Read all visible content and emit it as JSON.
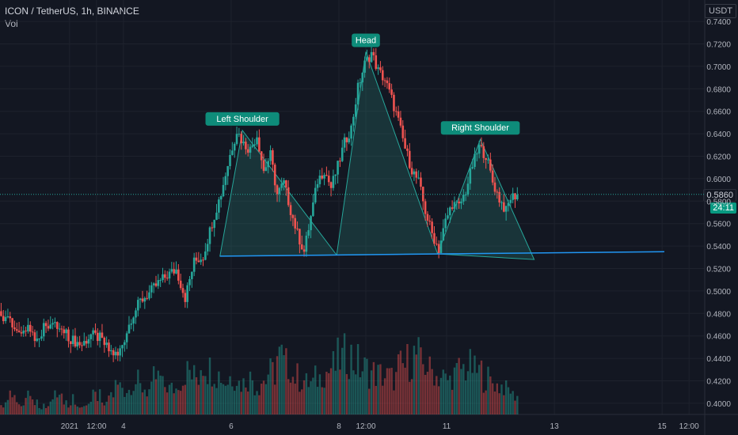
{
  "header": {
    "symbol": "ICON / TetherUS, 1h, BINANCE",
    "indicator": "Vol"
  },
  "price_axis": {
    "currency": "USDT",
    "last_price": "0.5860",
    "countdown": "24:11"
  },
  "colors": {
    "background": "#131722",
    "up": "#26a69a",
    "down": "#ef5350",
    "pattern_fill": "#2a8a80",
    "neckline": "#2196f3",
    "label_bg": "#0e8c7a"
  },
  "chart_data": {
    "type": "candlestick",
    "y_ticks": [
      "0.7400",
      "0.7200",
      "0.7000",
      "0.6800",
      "0.6600",
      "0.6400",
      "0.6200",
      "0.6000",
      "0.5800",
      "0.5600",
      "0.5400",
      "0.5200",
      "0.5000",
      "0.4800",
      "0.4600",
      "0.4400",
      "0.4200",
      "0.4000"
    ],
    "ylim": [
      0.395,
      0.745
    ],
    "x_ticks": [
      {
        "label": "2021",
        "h": 0
      },
      {
        "label": "12:00",
        "h": 12
      },
      {
        "label": "4",
        "h": 24
      },
      {
        "label": "6",
        "h": 72
      },
      {
        "label": "8",
        "h": 120
      },
      {
        "label": "12:00",
        "h": 132
      },
      {
        "label": "11",
        "h": 168
      },
      {
        "label": "13",
        "h": 216
      },
      {
        "label": "15",
        "h": 264
      },
      {
        "label": "12:00",
        "h": 276
      }
    ],
    "x_range_hours": [
      -31,
      283
    ],
    "price_path": [
      [
        -31,
        0.482
      ],
      [
        -27,
        0.474
      ],
      [
        -23,
        0.461
      ],
      [
        -18,
        0.468
      ],
      [
        -14,
        0.457
      ],
      [
        -10,
        0.472
      ],
      [
        -6,
        0.469
      ],
      [
        -2,
        0.463
      ],
      [
        2,
        0.456
      ],
      [
        6,
        0.452
      ],
      [
        10,
        0.461
      ],
      [
        14,
        0.458
      ],
      [
        18,
        0.447
      ],
      [
        22,
        0.442
      ],
      [
        25,
        0.458
      ],
      [
        28,
        0.476
      ],
      [
        32,
        0.491
      ],
      [
        36,
        0.498
      ],
      [
        40,
        0.507
      ],
      [
        44,
        0.514
      ],
      [
        48,
        0.519
      ],
      [
        52,
        0.494
      ],
      [
        56,
        0.526
      ],
      [
        60,
        0.531
      ],
      [
        64,
        0.561
      ],
      [
        68,
        0.587
      ],
      [
        72,
        0.621
      ],
      [
        75,
        0.643
      ],
      [
        78,
        0.631
      ],
      [
        81,
        0.626
      ],
      [
        84,
        0.639
      ],
      [
        87,
        0.607
      ],
      [
        90,
        0.621
      ],
      [
        93,
        0.586
      ],
      [
        96,
        0.596
      ],
      [
        99,
        0.572
      ],
      [
        102,
        0.551
      ],
      [
        105,
        0.535
      ],
      [
        108,
        0.566
      ],
      [
        111,
        0.598
      ],
      [
        114,
        0.608
      ],
      [
        117,
        0.592
      ],
      [
        120,
        0.611
      ],
      [
        123,
        0.632
      ],
      [
        126,
        0.645
      ],
      [
        129,
        0.681
      ],
      [
        132,
        0.702
      ],
      [
        135,
        0.712
      ],
      [
        138,
        0.696
      ],
      [
        141,
        0.688
      ],
      [
        144,
        0.671
      ],
      [
        147,
        0.651
      ],
      [
        150,
        0.627
      ],
      [
        153,
        0.608
      ],
      [
        156,
        0.597
      ],
      [
        159,
        0.571
      ],
      [
        162,
        0.551
      ],
      [
        165,
        0.537
      ],
      [
        168,
        0.562
      ],
      [
        171,
        0.578
      ],
      [
        174,
        0.575
      ],
      [
        177,
        0.589
      ],
      [
        180,
        0.612
      ],
      [
        183,
        0.628
      ],
      [
        186,
        0.621
      ],
      [
        189,
        0.597
      ],
      [
        192,
        0.582
      ],
      [
        195,
        0.571
      ],
      [
        197,
        0.583
      ],
      [
        200,
        0.586
      ]
    ],
    "volume_rel": [
      0.12,
      0.18,
      0.1,
      0.22,
      0.15,
      0.09,
      0.14,
      0.2,
      0.11,
      0.16,
      0.08,
      0.13,
      0.19,
      0.1,
      0.21,
      0.3,
      0.26,
      0.34,
      0.28,
      0.25,
      0.38,
      0.3,
      0.27,
      0.36,
      0.45,
      0.4,
      0.55,
      0.48,
      0.42,
      0.35,
      0.4,
      0.33,
      0.38,
      0.3,
      0.36,
      0.44,
      0.6,
      0.52,
      0.4,
      0.36,
      0.33,
      0.38,
      0.45,
      0.5,
      0.58,
      0.62,
      0.55,
      0.48,
      0.44,
      0.42,
      0.4,
      0.38,
      0.5,
      0.56,
      0.62,
      0.52,
      0.46,
      0.4,
      0.36,
      0.42,
      0.48,
      0.5,
      0.45,
      0.38,
      0.34,
      0.3,
      0.26,
      0.2
    ],
    "neckline": [
      [
        67,
        0.531
      ],
      [
        265,
        0.535
      ]
    ],
    "pattern": [
      {
        "label": "Left Shoulder",
        "peak": [
          77,
          0.643
        ],
        "left": [
          67,
          0.531
        ],
        "right": [
          119,
          0.532
        ]
      },
      {
        "label": "Head",
        "peak": [
          132,
          0.713
        ],
        "left": [
          119,
          0.532
        ],
        "right": [
          164,
          0.533
        ]
      },
      {
        "label": "Right Shoulder",
        "peak": [
          183,
          0.635
        ],
        "left": [
          164,
          0.533
        ],
        "right": [
          207,
          0.528
        ]
      }
    ]
  }
}
